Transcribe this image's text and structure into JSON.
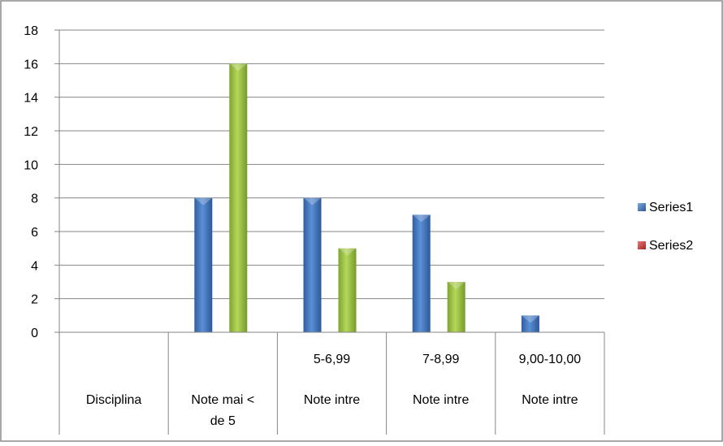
{
  "chart_data": {
    "type": "bar",
    "title": "",
    "xlabel": "",
    "ylabel": "",
    "ylim": [
      0,
      18
    ],
    "yticks": [
      "0",
      "2",
      "4",
      "6",
      "8",
      "10",
      "12",
      "14",
      "16",
      "18"
    ],
    "grid": true,
    "legend_position": "right",
    "categories": [
      [
        "Disciplina"
      ],
      [
        "Note mai <",
        "de 5"
      ],
      [
        "5-6,99",
        "Note intre"
      ],
      [
        "7-8,99",
        "Note intre"
      ],
      [
        "9,00-10,00",
        "Note intre"
      ]
    ],
    "series": [
      {
        "name": "Series1",
        "color": "#3e72b6",
        "values": [
          null,
          8,
          8,
          7,
          1
        ]
      },
      {
        "name": "Series2",
        "color": "#8fb83a",
        "values": [
          null,
          16,
          5,
          3,
          null
        ]
      }
    ],
    "legend": [
      {
        "label": "Series1",
        "color": "#3e72b6"
      },
      {
        "label": "Series2",
        "color": "#c9302c"
      }
    ]
  }
}
